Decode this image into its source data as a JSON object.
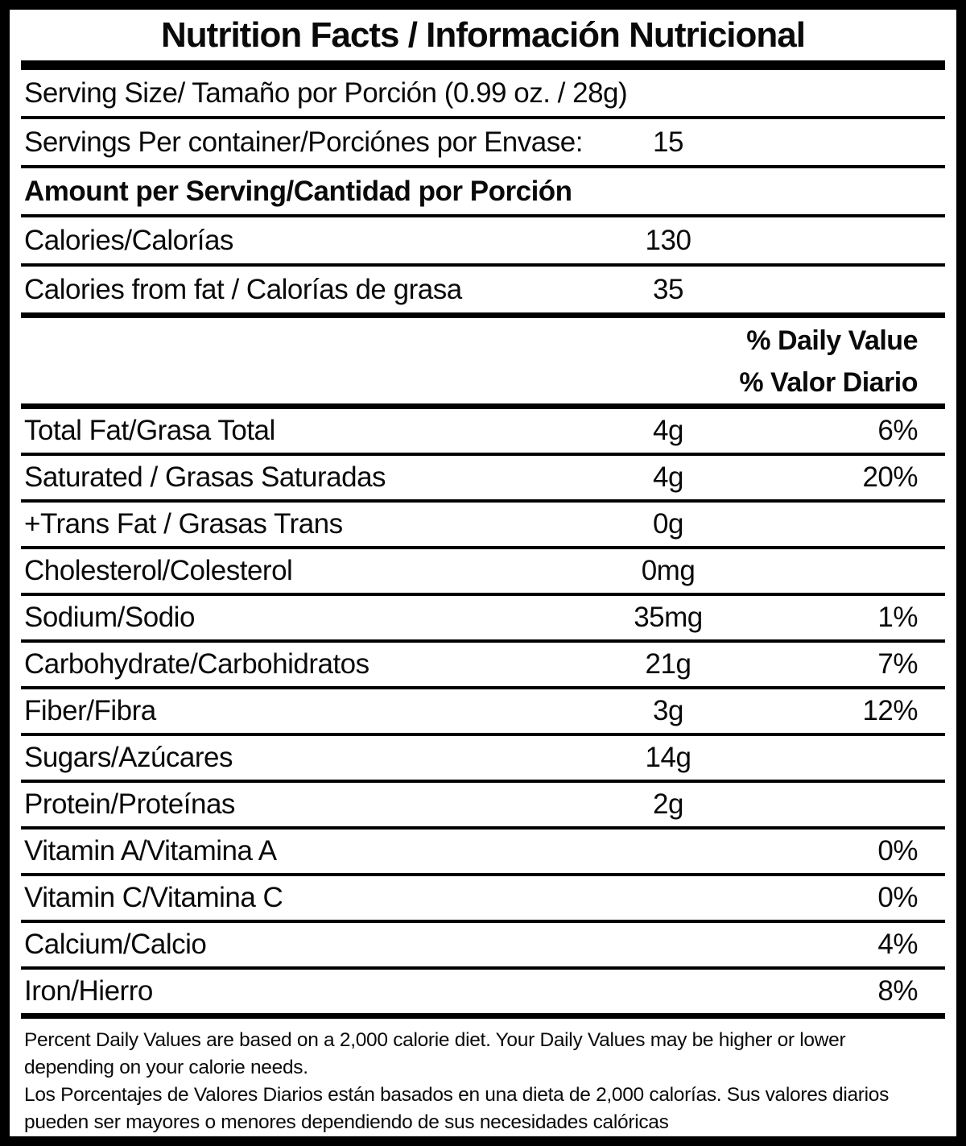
{
  "label": {
    "title": "Nutrition Facts / Información Nutricional",
    "serving_size": "Serving Size/ Tamaño por Porción  (0.99 oz. / 28g)",
    "servings_per_container": {
      "label": "Servings Per container/Porciónes por Envase:",
      "value": "15"
    },
    "amount_per_serving": "Amount per Serving/Cantidad por Porción",
    "calories": {
      "label": "Calories/Calorías",
      "value": "130"
    },
    "calories_from_fat": {
      "label": "Calories from fat / Calorías de grasa",
      "value": "35"
    },
    "daily_value_header": {
      "line1": "% Daily Value",
      "line2": "% Valor Diario"
    },
    "nutrients": [
      {
        "label": "Total Fat/Grasa Total",
        "amount": "4g",
        "dv": "6%"
      },
      {
        "label": "Saturated / Grasas Saturadas",
        "amount": "4g",
        "dv": "20%"
      },
      {
        "label": "+Trans Fat / Grasas Trans",
        "amount": "0g",
        "dv": ""
      },
      {
        "label": "Cholesterol/Colesterol",
        "amount": "0mg",
        "dv": ""
      },
      {
        "label": "Sodium/Sodio",
        "amount": "35mg",
        "dv": "1%"
      },
      {
        "label": "Carbohydrate/Carbohidratos",
        "amount": "21g",
        "dv": "7%"
      },
      {
        "label": "Fiber/Fibra",
        "amount": "3g",
        "dv": "12%"
      },
      {
        "label": "Sugars/Azúcares",
        "amount": "14g",
        "dv": ""
      },
      {
        "label": "Protein/Proteínas",
        "amount": "2g",
        "dv": ""
      },
      {
        "label": "Vitamin A/Vitamina A",
        "amount": "",
        "dv": "0%"
      },
      {
        "label": "Vitamin C/Vitamina C",
        "amount": "",
        "dv": "0%"
      },
      {
        "label": "Calcium/Calcio",
        "amount": "",
        "dv": "4%"
      },
      {
        "label": "Iron/Hierro",
        "amount": "",
        "dv": "8%"
      }
    ],
    "footnotes": {
      "en": "Percent Daily Values are based on a 2,000 calorie diet. Your Daily Values may be higher or lower depending on your calorie needs.",
      "es": "Los Porcentajes de Valores Diarios están basados en una dieta de 2,000 calorías. Sus valores diarios pueden ser mayores o menores dependiendo de sus necesidades calóricas"
    },
    "colors": {
      "text": "#0a0a0a",
      "background": "#ffffff",
      "border": "#000000"
    }
  }
}
